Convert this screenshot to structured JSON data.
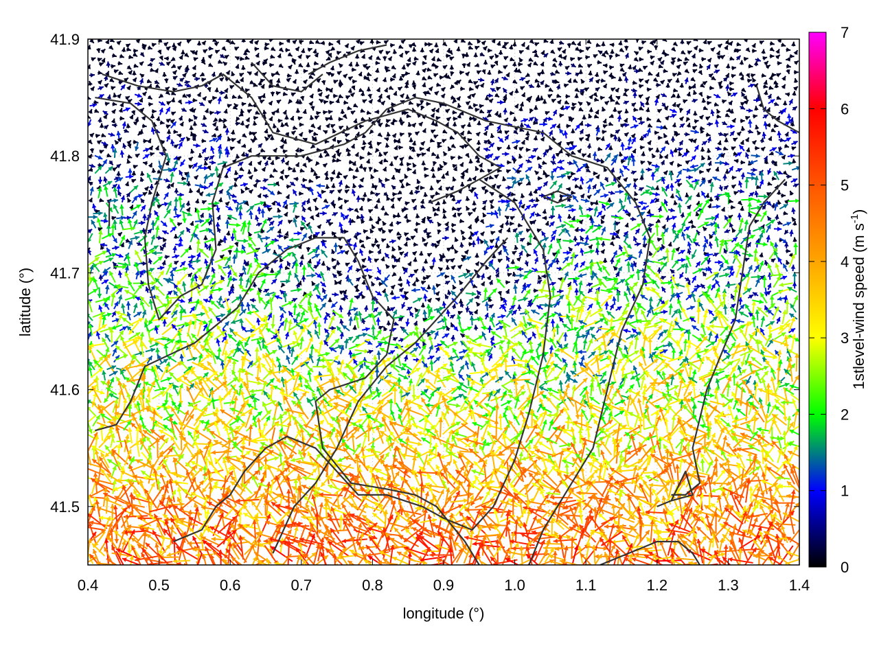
{
  "chart_data": {
    "type": "vector-field",
    "xlabel": "longitude (°)",
    "ylabel": "latitude (°)",
    "xlim": [
      0.4,
      1.4
    ],
    "ylim": [
      41.45,
      41.9
    ],
    "x_ticks": [
      "0.4",
      "0.5",
      "0.6",
      "0.7",
      "0.8",
      "0.9",
      "1.0",
      "1.1",
      "1.2",
      "1.3",
      "1.4"
    ],
    "y_ticks": [
      "41.5",
      "41.6",
      "41.7",
      "41.8",
      "41.9"
    ],
    "colorbar": {
      "label_main": "1stlevel-wind speed (m s",
      "label_sup": "-1",
      "label_close": ")",
      "range": [
        0,
        7
      ],
      "ticks": [
        "0",
        "1",
        "2",
        "3",
        "4",
        "5",
        "6",
        "7"
      ],
      "palette": [
        "#000000",
        "#0000ff",
        "#00ff00",
        "#ffff00",
        "#ffa500",
        "#ff5500",
        "#ff0000",
        "#ff00ff"
      ]
    },
    "grid": "dotted",
    "contour_color": "#333333",
    "contours": [
      [
        [
          0.42,
          41.87
        ],
        [
          0.47,
          41.86
        ],
        [
          0.52,
          41.855
        ],
        [
          0.56,
          41.86
        ],
        [
          0.59,
          41.87
        ],
        [
          0.63,
          41.85
        ],
        [
          0.66,
          41.82
        ],
        [
          0.72,
          41.81
        ],
        [
          0.79,
          41.83
        ],
        [
          0.85,
          41.84
        ],
        [
          0.89,
          41.83
        ],
        [
          0.92,
          41.82
        ],
        [
          0.95,
          41.8
        ],
        [
          0.98,
          41.79
        ],
        [
          0.95,
          41.78
        ],
        [
          0.92,
          41.77
        ],
        [
          0.88,
          41.76
        ]
      ],
      [
        [
          0.41,
          41.85
        ],
        [
          0.46,
          41.845
        ],
        [
          0.49,
          41.83
        ],
        [
          0.51,
          41.8
        ],
        [
          0.49,
          41.76
        ],
        [
          0.48,
          41.73
        ],
        [
          0.485,
          41.69
        ],
        [
          0.5,
          41.66
        ],
        [
          0.53,
          41.68
        ],
        [
          0.56,
          41.69
        ],
        [
          0.58,
          41.72
        ],
        [
          0.575,
          41.76
        ],
        [
          0.59,
          41.79
        ],
        [
          0.63,
          41.8
        ],
        [
          0.7,
          41.8
        ],
        [
          0.76,
          41.81
        ],
        [
          0.79,
          41.82
        ],
        [
          0.82,
          41.84
        ],
        [
          0.86,
          41.85
        ],
        [
          0.9,
          41.845
        ],
        [
          0.96,
          41.83
        ],
        [
          1.04,
          41.82
        ],
        [
          1.08,
          41.8
        ],
        [
          1.13,
          41.79
        ],
        [
          1.17,
          41.76
        ],
        [
          1.19,
          41.73
        ],
        [
          1.18,
          41.69
        ],
        [
          1.15,
          41.65
        ],
        [
          1.13,
          41.6
        ],
        [
          1.11,
          41.55
        ],
        [
          1.08,
          41.52
        ],
        [
          1.04,
          41.48
        ],
        [
          1.02,
          41.45
        ]
      ],
      [
        [
          0.41,
          41.565
        ],
        [
          0.44,
          41.57
        ],
        [
          0.46,
          41.59
        ],
        [
          0.48,
          41.62
        ],
        [
          0.55,
          41.64
        ],
        [
          0.61,
          41.67
        ],
        [
          0.64,
          41.7
        ],
        [
          0.68,
          41.72
        ],
        [
          0.72,
          41.73
        ],
        [
          0.76,
          41.73
        ],
        [
          0.78,
          41.71
        ],
        [
          0.8,
          41.68
        ],
        [
          0.83,
          41.66
        ],
        [
          0.82,
          41.63
        ],
        [
          0.79,
          41.61
        ],
        [
          0.74,
          41.6
        ],
        [
          0.72,
          41.59
        ],
        [
          0.73,
          41.55
        ],
        [
          0.77,
          41.52
        ],
        [
          0.82,
          41.515
        ],
        [
          0.86,
          41.51
        ],
        [
          0.89,
          41.5
        ],
        [
          0.93,
          41.47
        ],
        [
          0.96,
          41.44
        ]
      ],
      [
        [
          0.52,
          41.47
        ],
        [
          0.56,
          41.48
        ],
        [
          0.58,
          41.5
        ],
        [
          0.6,
          41.51
        ],
        [
          0.62,
          41.53
        ],
        [
          0.65,
          41.55
        ],
        [
          0.68,
          41.56
        ],
        [
          0.72,
          41.55
        ],
        [
          0.75,
          41.53
        ],
        [
          0.78,
          41.51
        ],
        [
          0.82,
          41.51
        ],
        [
          0.87,
          41.5
        ],
        [
          0.9,
          41.49
        ],
        [
          0.94,
          41.48
        ],
        [
          0.97,
          41.5
        ],
        [
          1.0,
          41.54
        ],
        [
          1.02,
          41.58
        ],
        [
          1.04,
          41.63
        ],
        [
          1.05,
          41.68
        ],
        [
          1.04,
          41.72
        ],
        [
          1.0,
          41.76
        ],
        [
          0.95,
          41.78
        ]
      ],
      [
        [
          0.66,
          41.46
        ],
        [
          0.69,
          41.5
        ],
        [
          0.72,
          41.52
        ],
        [
          0.75,
          41.55
        ],
        [
          0.78,
          41.59
        ],
        [
          0.82,
          41.62
        ],
        [
          0.86,
          41.64
        ],
        [
          0.89,
          41.66
        ],
        [
          0.92,
          41.68
        ],
        [
          0.96,
          41.71
        ],
        [
          0.99,
          41.73
        ]
      ],
      [
        [
          1.12,
          41.45
        ],
        [
          1.16,
          41.46
        ],
        [
          1.2,
          41.47
        ],
        [
          1.23,
          41.47
        ],
        [
          1.25,
          41.46
        ],
        [
          1.26,
          41.45
        ]
      ],
      [
        [
          1.22,
          41.51
        ],
        [
          1.24,
          41.51
        ],
        [
          1.26,
          41.52
        ],
        [
          1.25,
          41.55
        ],
        [
          1.27,
          41.6
        ],
        [
          1.29,
          41.63
        ],
        [
          1.31,
          41.66
        ],
        [
          1.32,
          41.7
        ],
        [
          1.33,
          41.74
        ],
        [
          1.35,
          41.76
        ],
        [
          1.38,
          41.78
        ]
      ],
      [
        [
          1.2,
          41.5
        ],
        [
          1.22,
          41.505
        ],
        [
          1.25,
          41.51
        ],
        [
          1.24,
          41.53
        ],
        [
          1.22,
          41.505
        ]
      ],
      [
        [
          1.04,
          41.765
        ],
        [
          1.06,
          41.77
        ],
        [
          1.08,
          41.765
        ],
        [
          1.06,
          41.76
        ],
        [
          1.04,
          41.765
        ]
      ],
      [
        [
          1.34,
          41.86
        ],
        [
          1.35,
          41.84
        ],
        [
          1.37,
          41.83
        ],
        [
          1.4,
          41.82
        ]
      ],
      [
        [
          0.63,
          41.88
        ],
        [
          0.66,
          41.86
        ],
        [
          0.7,
          41.855
        ],
        [
          0.73,
          41.87
        ]
      ],
      [
        [
          0.43,
          41.76
        ],
        [
          0.43,
          41.74
        ]
      ],
      [
        [
          0.71,
          41.87
        ],
        [
          0.74,
          41.88
        ],
        [
          0.78,
          41.89
        ],
        [
          0.82,
          41.895
        ]
      ]
    ]
  }
}
